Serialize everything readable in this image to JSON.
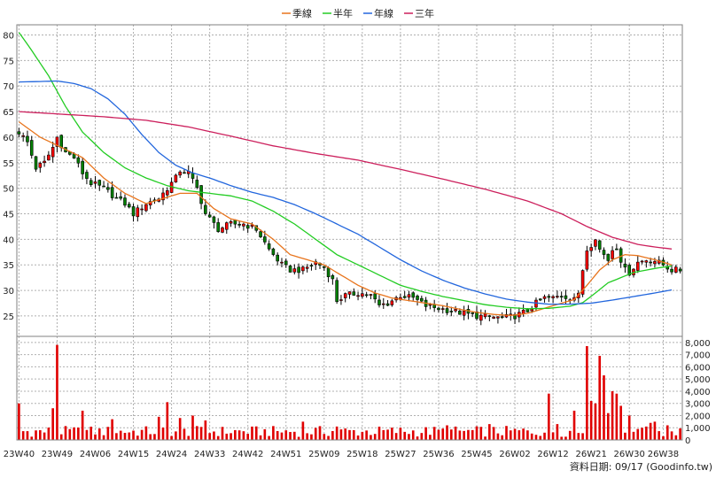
{
  "chart_data": {
    "type": "candlestick",
    "legend_position": "top-center",
    "grid": true,
    "credit": "資料日期: 09/17 (Goodinfo.tw)",
    "colors": {
      "up": "#ff0000",
      "down": "#008000",
      "wick": "#000000",
      "volume": "#e00000",
      "frame": "#808080",
      "grid": "#b0b0b0"
    },
    "price_axis": {
      "ylim": [
        21,
        82
      ],
      "ticks": [
        25,
        30,
        35,
        40,
        45,
        50,
        55,
        60,
        65,
        70,
        75,
        80
      ]
    },
    "volume_axis": {
      "ylim": [
        0,
        8500
      ],
      "ticks": [
        0,
        1000,
        2000,
        3000,
        4000,
        5000,
        6000,
        7000,
        8000
      ],
      "tick_labels": [
        "0",
        "1,000",
        "2,000",
        "3,000",
        "4,000",
        "5,000",
        "6,000",
        "7,000",
        "8,000"
      ]
    },
    "x_axis": {
      "start_index": 0,
      "end_index": 156,
      "ticks": [
        {
          "i": 0,
          "label": "23W40"
        },
        {
          "i": 9,
          "label": "23W49"
        },
        {
          "i": 18,
          "label": "24W06"
        },
        {
          "i": 27,
          "label": "24W15"
        },
        {
          "i": 36,
          "label": "24W24"
        },
        {
          "i": 45,
          "label": "24W33"
        },
        {
          "i": 54,
          "label": "24W42"
        },
        {
          "i": 63,
          "label": "24W51"
        },
        {
          "i": 72,
          "label": "25W09"
        },
        {
          "i": 81,
          "label": "25W18"
        },
        {
          "i": 90,
          "label": "25W27"
        },
        {
          "i": 99,
          "label": "25W36"
        },
        {
          "i": 108,
          "label": "25W45"
        },
        {
          "i": 117,
          "label": "26W02"
        },
        {
          "i": 126,
          "label": "26W12"
        },
        {
          "i": 135,
          "label": "26W21"
        },
        {
          "i": 144,
          "label": "26W30"
        },
        {
          "i": 152,
          "label": "26W38"
        }
      ]
    },
    "price_anchors": [
      [
        0,
        61
      ],
      [
        2,
        59
      ],
      [
        4,
        54
      ],
      [
        6,
        55
      ],
      [
        8,
        58
      ],
      [
        9,
        60
      ],
      [
        11,
        57
      ],
      [
        13,
        56
      ],
      [
        15,
        53
      ],
      [
        17,
        51
      ],
      [
        20,
        50
      ],
      [
        23,
        48
      ],
      [
        25,
        47
      ],
      [
        27,
        45
      ],
      [
        30,
        47
      ],
      [
        33,
        48
      ],
      [
        35,
        50
      ],
      [
        37,
        52
      ],
      [
        38,
        53.5
      ],
      [
        40,
        53
      ],
      [
        42,
        50
      ],
      [
        44,
        45
      ],
      [
        47,
        42
      ],
      [
        50,
        43
      ],
      [
        53,
        43
      ],
      [
        56,
        42
      ],
      [
        59,
        38
      ],
      [
        62,
        35
      ],
      [
        64,
        34
      ],
      [
        67,
        34
      ],
      [
        70,
        35.5
      ],
      [
        72,
        34.5
      ],
      [
        74,
        32
      ],
      [
        75,
        28
      ],
      [
        77,
        29
      ],
      [
        80,
        29.5
      ],
      [
        83,
        29
      ],
      [
        85,
        27
      ],
      [
        87,
        27.5
      ],
      [
        90,
        29
      ],
      [
        93,
        28.5
      ],
      [
        96,
        27
      ],
      [
        99,
        26.5
      ],
      [
        102,
        26
      ],
      [
        105,
        25.5
      ],
      [
        108,
        25
      ],
      [
        111,
        24.8
      ],
      [
        114,
        24.6
      ],
      [
        117,
        25
      ],
      [
        120,
        26
      ],
      [
        122,
        27.5
      ],
      [
        124,
        28.5
      ],
      [
        126,
        28.5
      ],
      [
        128,
        29
      ],
      [
        130,
        28.5
      ],
      [
        132,
        29
      ],
      [
        133,
        34
      ],
      [
        134,
        38
      ],
      [
        135,
        39
      ],
      [
        136,
        40.5
      ],
      [
        137,
        38
      ],
      [
        138,
        37
      ],
      [
        139,
        36
      ],
      [
        140,
        38
      ],
      [
        141,
        38.5
      ],
      [
        142,
        36
      ],
      [
        143,
        34
      ],
      [
        144,
        33.5
      ],
      [
        146,
        35.5
      ],
      [
        148,
        36
      ],
      [
        150,
        35.8
      ],
      [
        152,
        35
      ],
      [
        153,
        34.5
      ],
      [
        154,
        34
      ]
    ],
    "volume_spikes": [
      [
        0,
        3000
      ],
      [
        8,
        2600
      ],
      [
        9,
        7800
      ],
      [
        15,
        2400
      ],
      [
        22,
        1700
      ],
      [
        33,
        1900
      ],
      [
        35,
        3100
      ],
      [
        38,
        1800
      ],
      [
        41,
        2000
      ],
      [
        44,
        1600
      ],
      [
        67,
        1500
      ],
      [
        75,
        1100
      ],
      [
        101,
        1200
      ],
      [
        111,
        1300
      ],
      [
        125,
        3800
      ],
      [
        127,
        1300
      ],
      [
        131,
        2400
      ],
      [
        134,
        7700
      ],
      [
        135,
        3200
      ],
      [
        136,
        3000
      ],
      [
        137,
        6900
      ],
      [
        138,
        5300
      ],
      [
        139,
        2200
      ],
      [
        140,
        4000
      ],
      [
        141,
        3800
      ],
      [
        142,
        2800
      ],
      [
        144,
        2000
      ],
      [
        146,
        900
      ],
      [
        147,
        1000
      ],
      [
        148,
        1100
      ],
      [
        149,
        1400
      ],
      [
        150,
        1500
      ],
      [
        153,
        1200
      ],
      [
        154,
        700
      ]
    ],
    "series": [
      {
        "name": "季線",
        "color": "#e8741c",
        "anchors": [
          [
            0,
            63
          ],
          [
            5,
            60
          ],
          [
            10,
            58
          ],
          [
            15,
            56
          ],
          [
            20,
            52
          ],
          [
            25,
            49
          ],
          [
            30,
            47
          ],
          [
            34,
            48
          ],
          [
            38,
            49
          ],
          [
            42,
            49
          ],
          [
            46,
            46
          ],
          [
            50,
            44
          ],
          [
            55,
            43
          ],
          [
            60,
            40
          ],
          [
            64,
            37
          ],
          [
            68,
            36
          ],
          [
            72,
            35
          ],
          [
            76,
            33
          ],
          [
            80,
            31
          ],
          [
            84,
            29.5
          ],
          [
            88,
            28.5
          ],
          [
            92,
            28
          ],
          [
            96,
            27.5
          ],
          [
            100,
            27
          ],
          [
            104,
            26.3
          ],
          [
            108,
            25.7
          ],
          [
            112,
            25.3
          ],
          [
            116,
            25.1
          ],
          [
            120,
            25.5
          ],
          [
            124,
            26.5
          ],
          [
            128,
            27.5
          ],
          [
            131,
            28.2
          ],
          [
            134,
            31
          ],
          [
            137,
            34
          ],
          [
            140,
            36
          ],
          [
            143,
            37
          ],
          [
            146,
            36.8
          ],
          [
            150,
            36
          ],
          [
            154,
            35
          ]
        ]
      },
      {
        "name": "半年",
        "color": "#22cc22",
        "anchors": [
          [
            0,
            80.5
          ],
          [
            3,
            77
          ],
          [
            7,
            72
          ],
          [
            11,
            66
          ],
          [
            15,
            61
          ],
          [
            20,
            57
          ],
          [
            25,
            54
          ],
          [
            30,
            52
          ],
          [
            35,
            50.5
          ],
          [
            40,
            49.5
          ],
          [
            45,
            49
          ],
          [
            50,
            48.5
          ],
          [
            55,
            47.5
          ],
          [
            60,
            45.5
          ],
          [
            65,
            43
          ],
          [
            70,
            40
          ],
          [
            75,
            37
          ],
          [
            80,
            35
          ],
          [
            85,
            33
          ],
          [
            90,
            31
          ],
          [
            95,
            29.8
          ],
          [
            100,
            28.8
          ],
          [
            105,
            28
          ],
          [
            110,
            27.2
          ],
          [
            115,
            26.7
          ],
          [
            120,
            26.4
          ],
          [
            125,
            26.5
          ],
          [
            130,
            26.9
          ],
          [
            133,
            27.6
          ],
          [
            136,
            29.5
          ],
          [
            139,
            31.5
          ],
          [
            142,
            32.5
          ],
          [
            145,
            33.5
          ],
          [
            150,
            34.3
          ],
          [
            154,
            34.8
          ]
        ]
      },
      {
        "name": "年線",
        "color": "#2266dd",
        "anchors": [
          [
            0,
            70.8
          ],
          [
            5,
            70.9
          ],
          [
            9,
            71
          ],
          [
            13,
            70.5
          ],
          [
            17,
            69.5
          ],
          [
            21,
            67.5
          ],
          [
            25,
            64.5
          ],
          [
            29,
            60.5
          ],
          [
            33,
            57
          ],
          [
            37,
            54.5
          ],
          [
            41,
            53
          ],
          [
            45,
            52
          ],
          [
            50,
            50.5
          ],
          [
            55,
            49.2
          ],
          [
            60,
            48.2
          ],
          [
            65,
            46.8
          ],
          [
            70,
            45
          ],
          [
            75,
            43
          ],
          [
            80,
            41
          ],
          [
            85,
            38.5
          ],
          [
            90,
            36
          ],
          [
            95,
            33.8
          ],
          [
            100,
            32
          ],
          [
            105,
            30.5
          ],
          [
            110,
            29.3
          ],
          [
            115,
            28.3
          ],
          [
            120,
            27.7
          ],
          [
            125,
            27.3
          ],
          [
            130,
            27.3
          ],
          [
            135,
            27.5
          ],
          [
            140,
            28.1
          ],
          [
            145,
            28.8
          ],
          [
            150,
            29.5
          ],
          [
            154,
            30.1
          ]
        ]
      },
      {
        "name": "三年",
        "color": "#cc1f5c",
        "anchors": [
          [
            0,
            65
          ],
          [
            10,
            64.5
          ],
          [
            20,
            64
          ],
          [
            30,
            63.3
          ],
          [
            40,
            62
          ],
          [
            50,
            60.2
          ],
          [
            60,
            58.3
          ],
          [
            70,
            56.8
          ],
          [
            80,
            55.5
          ],
          [
            90,
            53.7
          ],
          [
            100,
            51.8
          ],
          [
            110,
            49.8
          ],
          [
            120,
            47.5
          ],
          [
            128,
            45
          ],
          [
            134,
            42.5
          ],
          [
            140,
            40.4
          ],
          [
            146,
            39
          ],
          [
            150,
            38.5
          ],
          [
            154,
            38.1
          ]
        ]
      }
    ]
  }
}
